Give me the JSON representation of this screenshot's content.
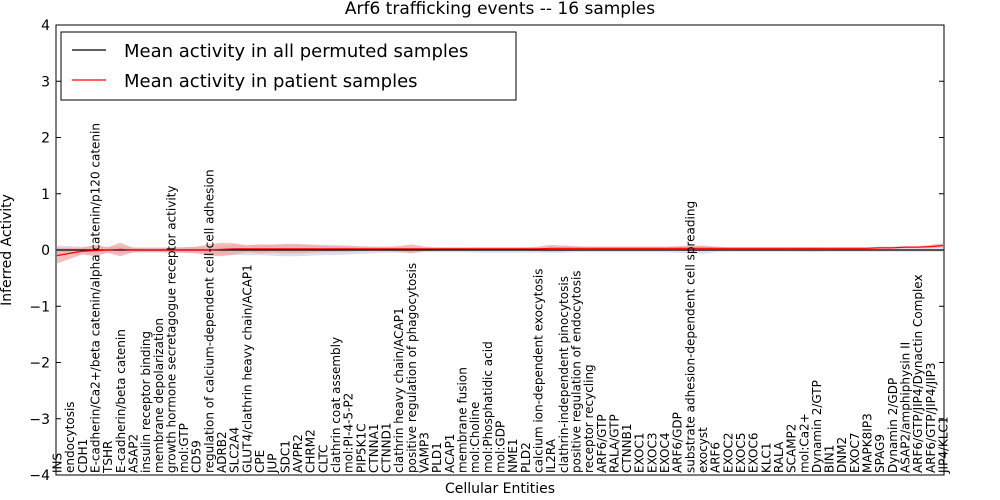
{
  "chart_data": {
    "type": "line",
    "title": "Arf6 trafficking events -- 16 samples",
    "xlabel": "Cellular Entities",
    "ylabel": "Inferred Activity",
    "ylim": [
      -4,
      4
    ],
    "yticks": [
      "4",
      "3",
      "2",
      "1",
      "0",
      "−1",
      "−2",
      "−3",
      "−4"
    ],
    "legend_position": "top-left",
    "grid": false,
    "categories": [
      "INS",
      "endocytosis",
      "CDH1",
      "E-cadherin/Ca2+/beta catenin/alpha catenin/p120 catenin",
      "TSHR",
      "E-cadherin/beta catenin",
      "ASAP2",
      "insulin receptor binding",
      "membrane depolarization",
      "growth hormone secretagogue receptor activity",
      "mol:GTP",
      "CD59",
      "regulation of calcium-dependent cell-cell adhesion",
      "ADRB2",
      "SLC2A4",
      "GLUT4/clathrin heavy chain/ACAP1",
      "CPE",
      "JUP",
      "SDC1",
      "AVPR2",
      "CHRM2",
      "CLTC",
      "clathrin coat assembly",
      "mol:PI-4-5-P2",
      "PIP5K1C",
      "CTNNA1",
      "CTNND1",
      "clathrin heavy chain/ACAP1",
      "positive regulation of phagocytosis",
      "VAMP3",
      "PLD1",
      "ACAP1",
      "membrane fusion",
      "mol:Choline",
      "mol:Phosphatidic acid",
      "mol:GDP",
      "NME1",
      "PLD2",
      "calcium ion-dependent exocytosis",
      "IL2RA",
      "clathrin-independent pinocytosis",
      "positive regulation of endocytosis",
      "receptor recycling",
      "ARF6/GTP",
      "RALA/GTP",
      "CTNNB1",
      "EXOC1",
      "EXOC3",
      "EXOC4",
      "ARF6/GDP",
      "substrate adhesion-dependent cell spreading",
      "exocyst",
      "ARF6",
      "EXOC2",
      "EXOC5",
      "EXOC6",
      "KLC1",
      "RALA",
      "SCAMP2",
      "mol:Ca2+",
      "Dynamin 2/GTP",
      "BIN1",
      "DNM2",
      "EXOC7",
      "MAPK8IP3",
      "SPAG9",
      "Dynamin 2/GDP",
      "ASAP2/amphiphysin II",
      "ARF6/GTP/JIP4/Dynactin Complex",
      "ARF6/GTP/JIP4/JIP3",
      "JIP4/KLC1"
    ],
    "series": [
      {
        "name": "Mean activity in all permuted samples",
        "color": "#000000",
        "band_color": "#c8c8d8",
        "values": [
          0.0,
          0.0,
          0.0,
          0.0,
          0.0,
          0.0,
          0.0,
          0.0,
          0.0,
          0.0,
          0.0,
          0.0,
          0.0,
          0.0,
          0.0,
          0.0,
          0.0,
          0.0,
          0.0,
          0.0,
          0.0,
          0.0,
          0.0,
          0.0,
          0.0,
          0.0,
          0.0,
          0.0,
          0.0,
          0.0,
          0.0,
          0.0,
          0.0,
          0.0,
          0.0,
          0.0,
          0.0,
          0.0,
          0.0,
          0.0,
          0.0,
          0.0,
          0.0,
          0.0,
          0.0,
          0.0,
          0.0,
          0.0,
          0.0,
          0.0,
          0.0,
          0.0,
          0.0,
          0.0,
          0.0,
          0.0,
          0.0,
          0.0,
          0.0,
          0.0,
          0.0,
          0.0,
          0.0,
          0.0,
          0.0,
          0.0,
          0.0,
          0.0,
          0.0,
          0.0,
          0.0
        ],
        "spread": [
          0.08,
          0.07,
          0.06,
          0.06,
          0.05,
          0.06,
          0.05,
          0.05,
          0.05,
          0.05,
          0.05,
          0.05,
          0.06,
          0.08,
          0.09,
          0.09,
          0.09,
          0.1,
          0.11,
          0.11,
          0.1,
          0.09,
          0.09,
          0.08,
          0.07,
          0.06,
          0.05,
          0.05,
          0.05,
          0.04,
          0.04,
          0.04,
          0.04,
          0.05,
          0.05,
          0.05,
          0.05,
          0.05,
          0.05,
          0.05,
          0.05,
          0.04,
          0.04,
          0.04,
          0.04,
          0.04,
          0.04,
          0.04,
          0.04,
          0.05,
          0.06,
          0.07,
          0.04,
          0.03,
          0.03,
          0.03,
          0.03,
          0.03,
          0.03,
          0.04,
          0.04,
          0.03,
          0.03,
          0.03,
          0.03,
          0.03,
          0.03,
          0.03,
          0.03,
          0.03,
          0.03
        ]
      },
      {
        "name": "Mean activity in patient samples",
        "color": "#ff0000",
        "band_color": "#f29a9a",
        "values": [
          -0.1,
          -0.06,
          -0.02,
          -0.01,
          0.0,
          0.01,
          0.0,
          0.0,
          0.0,
          0.0,
          0.0,
          0.0,
          0.0,
          0.01,
          0.02,
          0.02,
          0.02,
          0.02,
          0.02,
          0.02,
          0.02,
          0.02,
          0.02,
          0.02,
          0.02,
          0.02,
          0.02,
          0.02,
          0.02,
          0.02,
          0.02,
          0.02,
          0.02,
          0.02,
          0.02,
          0.02,
          0.02,
          0.02,
          0.02,
          0.03,
          0.03,
          0.03,
          0.03,
          0.03,
          0.03,
          0.03,
          0.03,
          0.03,
          0.03,
          0.03,
          0.03,
          0.03,
          0.03,
          0.03,
          0.03,
          0.03,
          0.03,
          0.03,
          0.03,
          0.03,
          0.03,
          0.03,
          0.03,
          0.03,
          0.03,
          0.04,
          0.04,
          0.05,
          0.05,
          0.06,
          0.08
        ],
        "spread": [
          0.14,
          0.1,
          0.06,
          0.1,
          0.05,
          0.12,
          0.04,
          0.03,
          0.03,
          0.04,
          0.05,
          0.06,
          0.1,
          0.12,
          0.1,
          0.06,
          0.08,
          0.07,
          0.08,
          0.08,
          0.07,
          0.06,
          0.05,
          0.05,
          0.04,
          0.04,
          0.04,
          0.05,
          0.08,
          0.04,
          0.03,
          0.03,
          0.03,
          0.03,
          0.03,
          0.03,
          0.03,
          0.03,
          0.04,
          0.06,
          0.05,
          0.04,
          0.03,
          0.03,
          0.03,
          0.03,
          0.03,
          0.03,
          0.03,
          0.04,
          0.05,
          0.05,
          0.03,
          0.02,
          0.02,
          0.02,
          0.02,
          0.02,
          0.02,
          0.02,
          0.02,
          0.02,
          0.02,
          0.02,
          0.02,
          0.02,
          0.02,
          0.02,
          0.02,
          0.03,
          0.04
        ]
      }
    ]
  }
}
